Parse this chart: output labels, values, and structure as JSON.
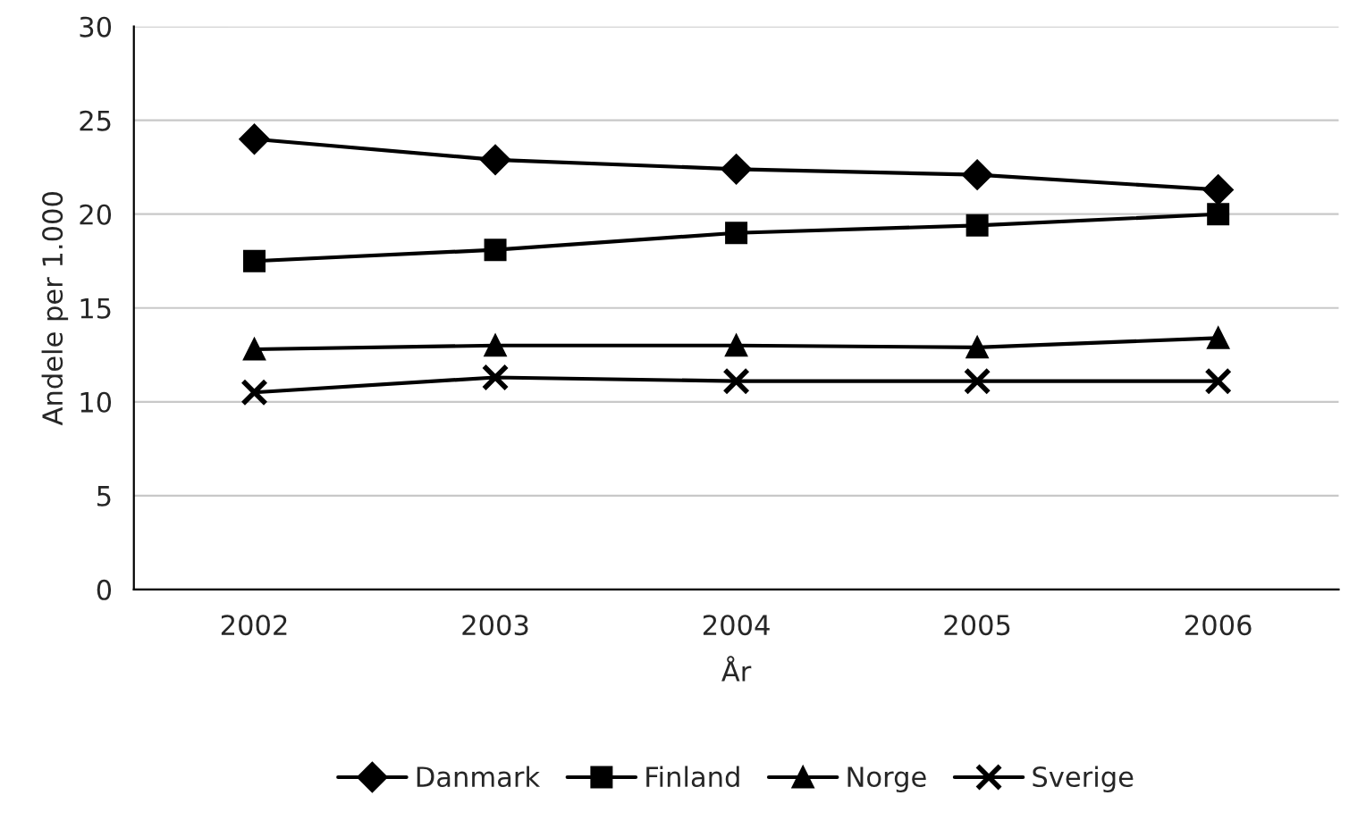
{
  "chart_data": {
    "type": "line",
    "xlabel": "År",
    "ylabel": "Andele per 1.000",
    "categories": [
      "2002",
      "2003",
      "2004",
      "2005",
      "2006"
    ],
    "series": [
      {
        "name": "Danmark",
        "color": "#000000",
        "marker": "diamond",
        "values": [
          24.0,
          22.9,
          22.4,
          22.1,
          21.3
        ]
      },
      {
        "name": "Finland",
        "color": "#000000",
        "marker": "square",
        "values": [
          17.5,
          18.1,
          19.0,
          19.4,
          20.0
        ]
      },
      {
        "name": "Norge",
        "color": "#000000",
        "marker": "triangle",
        "values": [
          12.8,
          13.0,
          13.0,
          12.9,
          13.4
        ]
      },
      {
        "name": "Sverige",
        "color": "#000000",
        "marker": "cross",
        "values": [
          10.5,
          11.3,
          11.1,
          11.1,
          11.1
        ]
      }
    ],
    "ylim": [
      0,
      30
    ],
    "yticks": [
      0,
      5,
      10,
      15,
      20,
      25,
      30
    ],
    "grid": "y",
    "legend": "bottom",
    "line_style": "solid"
  }
}
